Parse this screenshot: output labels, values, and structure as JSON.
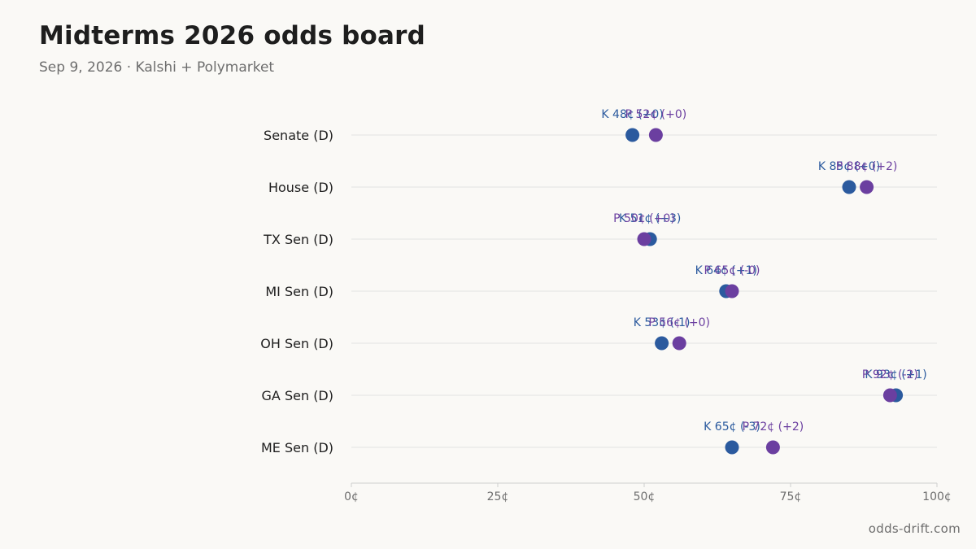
{
  "header": {
    "title": "Midterms 2026 odds board",
    "subtitle": "Sep 9, 2026 · Kalshi + Polymarket"
  },
  "footer": {
    "source": "odds-drift.com"
  },
  "colors": {
    "kalshi": "#2b5a9e",
    "polymarket": "#6b3fa0",
    "grid": "#e2e2e2",
    "axis": "#cfcfcf"
  },
  "chart_data": {
    "type": "scatter",
    "orientation": "dot-plot (horizontal)",
    "categories": [
      "Senate (D)",
      "House (D)",
      "TX Sen (D)",
      "MI Sen (D)",
      "OH Sen (D)",
      "GA Sen (D)",
      "ME Sen (D)"
    ],
    "xlim": [
      0,
      100
    ],
    "xticks": [
      0,
      25,
      50,
      75,
      100
    ],
    "xtick_labels": [
      "0¢",
      "25¢",
      "50¢",
      "75¢",
      "100¢"
    ],
    "grid": true,
    "series": [
      {
        "name": "K",
        "color": "#2b5a9e",
        "values": [
          48,
          85,
          51,
          64,
          53,
          93,
          65
        ],
        "labels": [
          "K 48¢ (+0)",
          "K 85¢ (+0)",
          "K 51¢ (+3)",
          "K 64¢ (+1)",
          "K 53¢ (-1)",
          "K 93¢ (+1)",
          "K 65¢ (-3)"
        ]
      },
      {
        "name": "P",
        "color": "#6b3fa0",
        "values": [
          52,
          88,
          50,
          65,
          56,
          92,
          72
        ],
        "labels": [
          "P 52¢ (+0)",
          "P 88¢ (+2)",
          "P 50¢ (+0)",
          "P 65¢ (-0)",
          "P 56¢ (+0)",
          "P 92¢ (-2)",
          "P 72¢ (+2)"
        ]
      }
    ]
  }
}
